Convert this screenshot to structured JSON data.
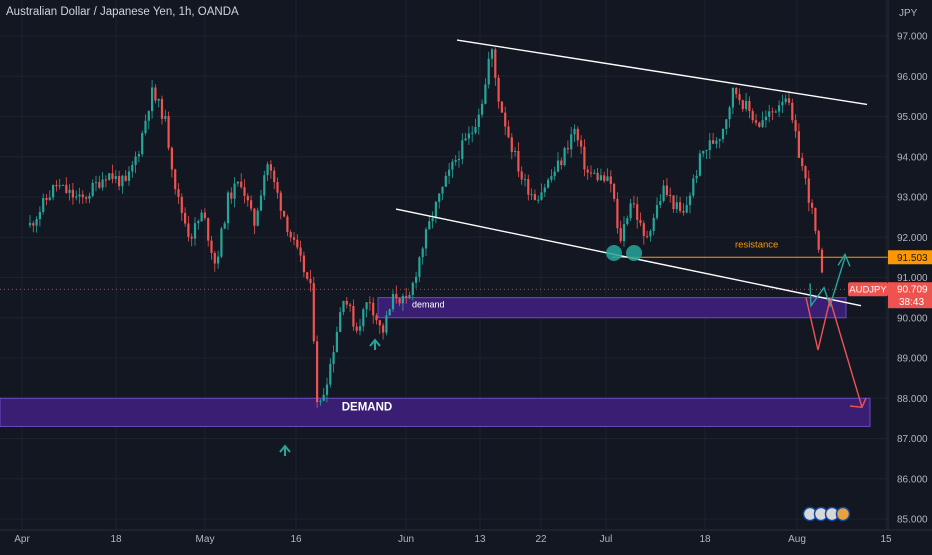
{
  "header": {
    "title": "Australian Dollar / Japanese Yen, 1h, OANDA"
  },
  "axis": {
    "currency": "JPY",
    "y_ticks": [
      "97.000",
      "96.000",
      "95.000",
      "94.000",
      "93.000",
      "92.000",
      "91.000",
      "90.000",
      "89.000",
      "88.000",
      "87.000",
      "86.000",
      "85.000"
    ],
    "x_ticks": [
      "Apr",
      "18",
      "May",
      "16",
      "Jun",
      "13",
      "22",
      "Jul",
      "18",
      "Aug",
      "15"
    ]
  },
  "labels": {
    "resistance": "resistance",
    "demand_small": "demand",
    "demand_big": "DEMAND",
    "symbol": "AUDJPY",
    "price": "90.709",
    "countdown": "38:43",
    "resistance_price": "91.503"
  },
  "colors": {
    "background": "#131722",
    "bull": "#26a69a",
    "bear": "#ef5350",
    "zone": "#3a1e73",
    "zone_border": "#6a4bc4",
    "resistance": "#ff9800",
    "trendline": "#ffffff",
    "axis_text": "#b2b5be"
  },
  "chart_data": {
    "type": "candlestick",
    "title": "Australian Dollar / Japanese Yen, 1h, OANDA",
    "y_unit": "JPY",
    "ylim": [
      84.9,
      97.9
    ],
    "x_range": [
      "Apr",
      "Aug 15"
    ],
    "path": [
      [
        "Apr 1",
        92.3
      ],
      [
        "Apr 5",
        93.3
      ],
      [
        "Apr 9",
        92.9
      ],
      [
        "Apr 13",
        93.6
      ],
      [
        "Apr 16",
        93.3
      ],
      [
        "Apr 18",
        94.2
      ],
      [
        "Apr 20",
        95.6
      ],
      [
        "Apr 22",
        95.0
      ],
      [
        "Apr 24",
        93.0
      ],
      [
        "Apr 26",
        92.0
      ],
      [
        "Apr 28",
        92.6
      ],
      [
        "Apr 30",
        91.3
      ],
      [
        "May 2",
        93.0
      ],
      [
        "May 4",
        93.4
      ],
      [
        "May 6",
        92.3
      ],
      [
        "May 8",
        93.9
      ],
      [
        "May 10",
        92.9
      ],
      [
        "May 12",
        91.9
      ],
      [
        "May 14",
        91.1
      ],
      [
        "May 15",
        90.6
      ],
      [
        "May 16",
        87.6
      ],
      [
        "May 18",
        88.9
      ],
      [
        "May 20",
        90.6
      ],
      [
        "May 22",
        89.7
      ],
      [
        "May 24",
        90.5
      ],
      [
        "May 26",
        89.6
      ],
      [
        "May 28",
        90.6
      ],
      [
        "May 30",
        90.3
      ],
      [
        "Jun 1",
        91.6
      ],
      [
        "Jun 3",
        92.6
      ],
      [
        "Jun 5",
        93.4
      ],
      [
        "Jun 7",
        94.1
      ],
      [
        "Jun 9",
        94.6
      ],
      [
        "Jun 11",
        95.6
      ],
      [
        "Jun 12",
        96.8
      ],
      [
        "Jun 13",
        95.6
      ],
      [
        "Jun 15",
        94.4
      ],
      [
        "Jun 17",
        93.4
      ],
      [
        "Jun 19",
        93.0
      ],
      [
        "Jun 21",
        93.4
      ],
      [
        "Jun 23",
        93.9
      ],
      [
        "Jun 25",
        94.7
      ],
      [
        "Jun 27",
        93.6
      ],
      [
        "Jun 29",
        93.5
      ],
      [
        "Jul 1",
        93.3
      ],
      [
        "Jul 2",
        91.8
      ],
      [
        "Jul 4",
        93.0
      ],
      [
        "Jul 6",
        91.9
      ],
      [
        "Jul 9",
        93.2
      ],
      [
        "Jul 12",
        92.5
      ],
      [
        "Jul 15",
        94.1
      ],
      [
        "Jul 18",
        94.6
      ],
      [
        "Jul 20",
        95.7
      ],
      [
        "Jul 22",
        95.2
      ],
      [
        "Jul 24",
        94.8
      ],
      [
        "Jul 26",
        95.1
      ],
      [
        "Jul 28",
        95.6
      ],
      [
        "Jul 30",
        94.2
      ],
      [
        "Aug 1",
        92.8
      ],
      [
        "Aug 2",
        91.8
      ],
      [
        "Aug 3",
        90.7
      ]
    ],
    "annotations": {
      "resistance_level": 91.503,
      "current_price": 90.709,
      "demand_zone": [
        90.0,
        90.5
      ],
      "DEMAND_zone": [
        87.3,
        88.0
      ],
      "upper_trendline": [
        [
          "Jun 12",
          96.9
        ],
        [
          "Aug 15",
          95.3
        ]
      ],
      "lower_trendline": [
        [
          "Jun 1",
          92.7
        ],
        [
          "Aug 15",
          90.3
        ]
      ],
      "bullish_projection": [
        91.6,
        90.3,
        91.5
      ],
      "bearish_projection": [
        90.8,
        89.2,
        90.5,
        87.9
      ]
    },
    "grid": true,
    "legend": "none"
  }
}
